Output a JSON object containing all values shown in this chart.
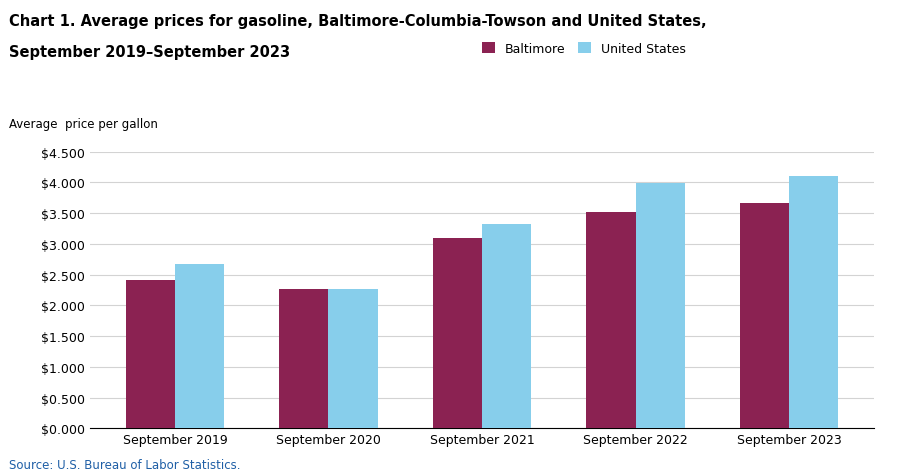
{
  "title_line1": "Chart 1. Average prices for gasoline, Baltimore-Columbia-Towson and United States,",
  "title_line2": "September 2019–September 2023",
  "ylabel": "Average  price per gallon",
  "categories": [
    "September 2019",
    "September 2020",
    "September 2021",
    "September 2022",
    "September 2023"
  ],
  "baltimore": [
    2.406,
    2.27,
    3.1,
    3.524,
    3.672
  ],
  "us": [
    2.668,
    2.258,
    3.327,
    3.997,
    4.107
  ],
  "baltimore_color": "#8B2252",
  "us_color": "#87CEEB",
  "ylim": [
    0,
    4.5
  ],
  "yticks": [
    0.0,
    0.5,
    1.0,
    1.5,
    2.0,
    2.5,
    3.0,
    3.5,
    4.0,
    4.5
  ],
  "legend_labels": [
    "Baltimore",
    "United States"
  ],
  "source": "Source: U.S. Bureau of Labor Statistics.",
  "bar_width": 0.32,
  "title_fontsize": 10.5,
  "axis_fontsize": 8.5,
  "tick_fontsize": 9,
  "legend_fontsize": 9
}
